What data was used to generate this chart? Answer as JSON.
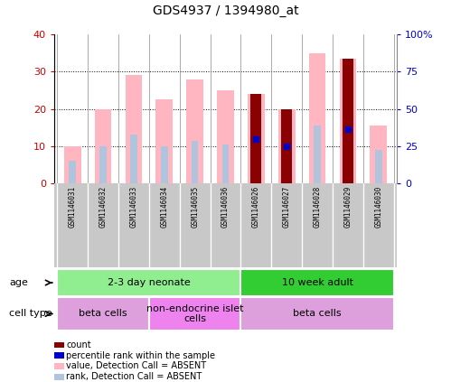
{
  "title": "GDS4937 / 1394980_at",
  "samples": [
    "GSM1146031",
    "GSM1146032",
    "GSM1146033",
    "GSM1146034",
    "GSM1146035",
    "GSM1146036",
    "GSM1146026",
    "GSM1146027",
    "GSM1146028",
    "GSM1146029",
    "GSM1146030"
  ],
  "value_absent": [
    10,
    20,
    29,
    22.5,
    28,
    25,
    24,
    20,
    35,
    33.5,
    15.5
  ],
  "rank_absent": [
    6,
    10,
    13,
    10,
    11.5,
    10.5,
    12,
    10,
    15.5,
    14.5,
    9
  ],
  "count": [
    null,
    null,
    null,
    null,
    null,
    null,
    24,
    20,
    null,
    33.5,
    null
  ],
  "percentile_rank": [
    null,
    null,
    null,
    null,
    null,
    null,
    12,
    10,
    null,
    14.5,
    null
  ],
  "ylim_left": [
    0,
    40
  ],
  "ylim_right": [
    0,
    100
  ],
  "yticks_left": [
    0,
    10,
    20,
    30,
    40
  ],
  "yticks_right": [
    0,
    25,
    50,
    75,
    100
  ],
  "yticklabels_right": [
    "0",
    "25",
    "50",
    "75",
    "100%"
  ],
  "age_groups": [
    {
      "label": "2-3 day neonate",
      "start": 0,
      "end": 6,
      "color": "#90EE90"
    },
    {
      "label": "10 week adult",
      "start": 6,
      "end": 11,
      "color": "#32CD32"
    }
  ],
  "cell_type_groups": [
    {
      "label": "beta cells",
      "start": 0,
      "end": 3,
      "color": "#DDA0DD"
    },
    {
      "label": "non-endocrine islet\ncells",
      "start": 3,
      "end": 6,
      "color": "#EE82EE"
    },
    {
      "label": "beta cells",
      "start": 6,
      "end": 11,
      "color": "#DDA0DD"
    }
  ],
  "color_value_absent": "#FFB6C1",
  "color_rank_absent": "#B0C4DE",
  "color_count": "#8B0000",
  "color_percentile": "#0000CD",
  "chart_bg": "#FFFFFF",
  "plot_area_bg": "#FFFFFF",
  "tick_color_left": "#CC0000",
  "tick_color_right": "#0000CC",
  "legend_items": [
    {
      "label": "count",
      "color": "#8B0000",
      "marker": "s"
    },
    {
      "label": "percentile rank within the sample",
      "color": "#0000CD",
      "marker": "s"
    },
    {
      "label": "value, Detection Call = ABSENT",
      "color": "#FFB6C1",
      "marker": "s"
    },
    {
      "label": "rank, Detection Call = ABSENT",
      "color": "#B0C4DE",
      "marker": "s"
    }
  ]
}
